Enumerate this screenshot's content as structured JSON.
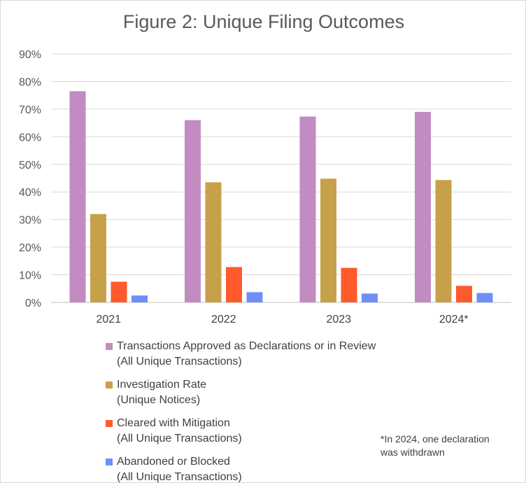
{
  "chart_data": {
    "type": "bar",
    "title": "Figure 2: Unique Filing Outcomes",
    "categories": [
      "2021",
      "2022",
      "2023",
      "2024*"
    ],
    "ylim": [
      0,
      90
    ],
    "yticks": [
      "0%",
      "10%",
      "20%",
      "30%",
      "40%",
      "50%",
      "60%",
      "70%",
      "80%",
      "90%"
    ],
    "grid": true,
    "legend_position": "bottom",
    "series": [
      {
        "name": "Transactions Approved as Declarations or in Review",
        "name_line2": "(All Unique Transactions)",
        "color": "#c28bc2",
        "values": [
          76.5,
          66,
          67.3,
          69
        ]
      },
      {
        "name": "Investigation Rate",
        "name_line2": "(Unique Notices)",
        "color": "#c7a04a",
        "values": [
          32,
          43.5,
          44.8,
          44.3
        ]
      },
      {
        "name": "Cleared with Mitigation",
        "name_line2": "(All Unique Transactions)",
        "color": "#ff5a2b",
        "values": [
          7.5,
          12.8,
          12.5,
          6
        ]
      },
      {
        "name": "Abandoned or Blocked",
        "name_line2": "(All Unique Transactions)",
        "color": "#6f8ff7",
        "values": [
          2.5,
          3.7,
          3.2,
          3.4
        ]
      }
    ],
    "footnote": [
      "*In 2024, one declaration",
      "was withdrawn"
    ]
  }
}
